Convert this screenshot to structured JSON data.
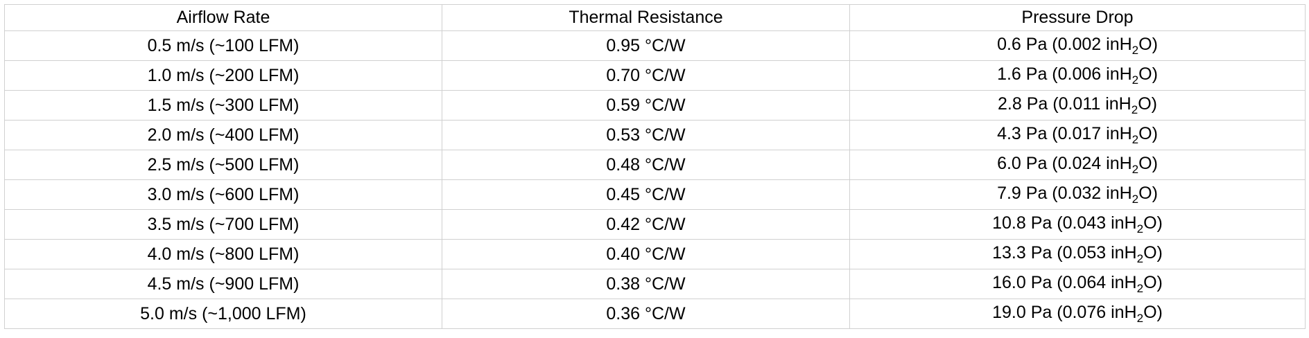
{
  "table": {
    "headers": [
      "Airflow Rate",
      "Thermal Resistance",
      "Pressure Drop"
    ],
    "rows": [
      {
        "airflow": "0.5 m/s (~100 LFM)",
        "resistance": "0.95 °C/W",
        "pressure_pa": "0.6 Pa (0.002 inH",
        "pressure_sub": "2",
        "pressure_tail": "O)"
      },
      {
        "airflow": "1.0 m/s (~200 LFM)",
        "resistance": "0.70 °C/W",
        "pressure_pa": "1.6 Pa (0.006 inH",
        "pressure_sub": "2",
        "pressure_tail": "O)"
      },
      {
        "airflow": "1.5 m/s (~300 LFM)",
        "resistance": "0.59 °C/W",
        "pressure_pa": "2.8 Pa (0.011 inH",
        "pressure_sub": "2",
        "pressure_tail": "O)"
      },
      {
        "airflow": "2.0 m/s (~400 LFM)",
        "resistance": "0.53 °C/W",
        "pressure_pa": "4.3 Pa (0.017 inH",
        "pressure_sub": "2",
        "pressure_tail": "O)"
      },
      {
        "airflow": "2.5 m/s (~500 LFM)",
        "resistance": "0.48 °C/W",
        "pressure_pa": "6.0 Pa (0.024 inH",
        "pressure_sub": "2",
        "pressure_tail": "O)"
      },
      {
        "airflow": "3.0 m/s (~600 LFM)",
        "resistance": "0.45 °C/W",
        "pressure_pa": "7.9 Pa (0.032 inH",
        "pressure_sub": "2",
        "pressure_tail": "O)"
      },
      {
        "airflow": "3.5 m/s (~700 LFM)",
        "resistance": "0.42 °C/W",
        "pressure_pa": "10.8 Pa (0.043 inH",
        "pressure_sub": "2",
        "pressure_tail": "O)"
      },
      {
        "airflow": "4.0 m/s (~800 LFM)",
        "resistance": "0.40 °C/W",
        "pressure_pa": "13.3 Pa (0.053 inH",
        "pressure_sub": "2",
        "pressure_tail": "O)"
      },
      {
        "airflow": "4.5 m/s (~900 LFM)",
        "resistance": "0.38 °C/W",
        "pressure_pa": "16.0 Pa (0.064 inH",
        "pressure_sub": "2",
        "pressure_tail": "O)"
      },
      {
        "airflow": "5.0 m/s (~1,000 LFM)",
        "resistance": "0.36 °C/W",
        "pressure_pa": "19.0 Pa (0.076 inH",
        "pressure_sub": "2",
        "pressure_tail": "O)"
      }
    ]
  }
}
